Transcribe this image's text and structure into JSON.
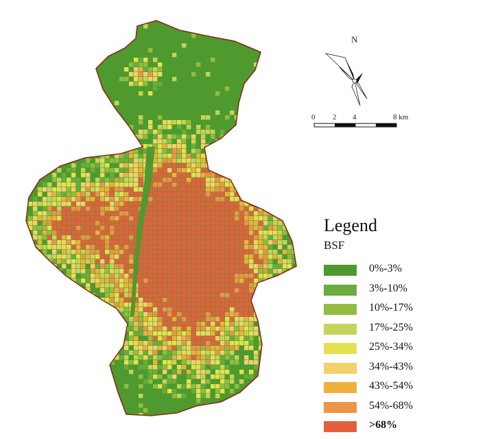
{
  "legend": {
    "title": "Legend",
    "subtitle": "BSF",
    "items": [
      {
        "label": "0%-3%",
        "color": "#4e9a2e",
        "bold": false
      },
      {
        "label": "3%-10%",
        "color": "#6aac3e",
        "bold": false
      },
      {
        "label": "10%-17%",
        "color": "#92bd3e",
        "bold": false
      },
      {
        "label": "17%-25%",
        "color": "#c5d35a",
        "bold": false
      },
      {
        "label": "25%-34%",
        "color": "#e5e04e",
        "bold": false
      },
      {
        "label": "34%-43%",
        "color": "#f2d06a",
        "bold": false
      },
      {
        "label": "43%-54%",
        "color": "#efb03c",
        "bold": false
      },
      {
        "label": "54%-68%",
        "color": "#ec9448",
        "bold": false
      },
      {
        "label": ">68%",
        "color": "#e3603e",
        "bold": true
      }
    ]
  },
  "north_arrow": {
    "label": "N"
  },
  "scale_bar": {
    "ticks": [
      "0",
      "2",
      "4",
      "8 km"
    ]
  },
  "colors": {
    "boundary": "#8a2a1a",
    "background": "#ffffff"
  }
}
